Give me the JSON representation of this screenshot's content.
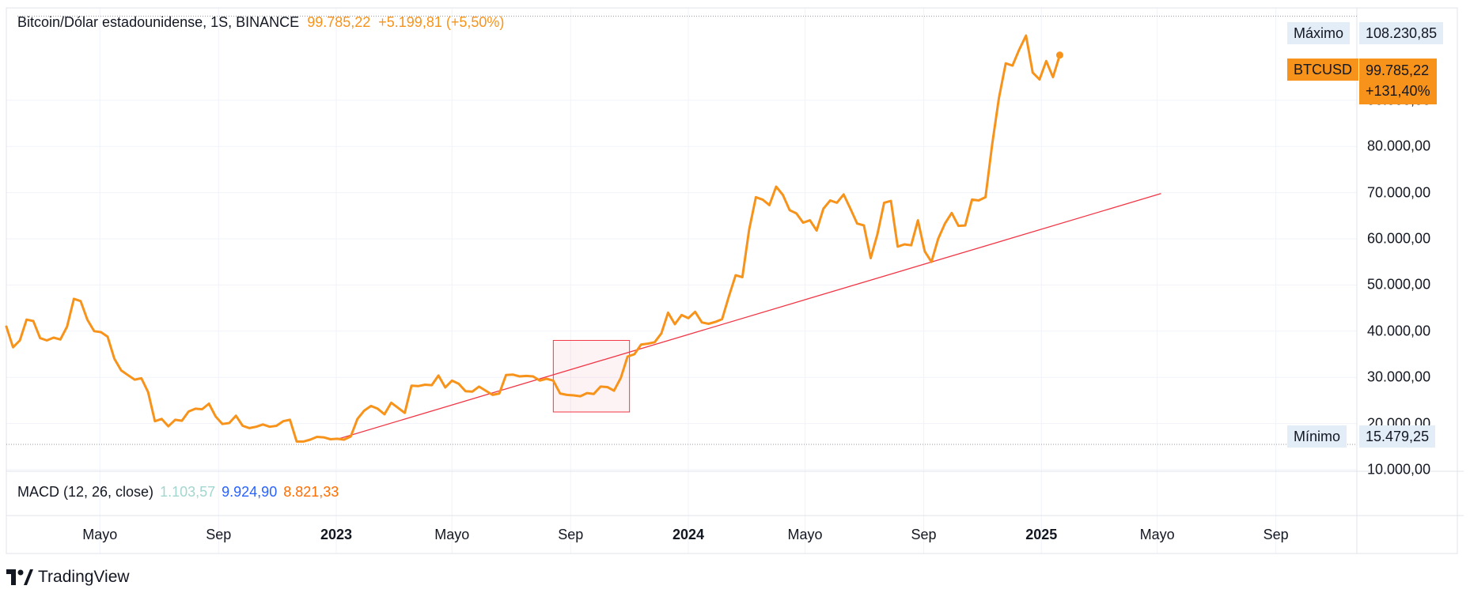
{
  "header": {
    "symbol_title": "Bitcoin/Dólar estadounidense, 1S, BINANCE",
    "price": "99.785,22",
    "change": "+5.199,81 (+5,50%)"
  },
  "macd": {
    "label": "MACD (12, 26, close)",
    "value1": "1.103,57",
    "value2": "9.924,90",
    "value3": "8.821,33"
  },
  "tags": {
    "max_label": "Máximo",
    "max_value": "108.230,85",
    "min_label": "Mínimo",
    "min_value": "15.479,25",
    "symbol": "BTCUSD",
    "last_price": "99.785,22",
    "last_change": "+131,40%"
  },
  "brand": {
    "name": "TradingView"
  },
  "colors": {
    "price_line": "#f7931a",
    "trend_line": "#f23645",
    "grid": "#f0f3fa",
    "macd_v1": "#a3d6cf",
    "macd_v2": "#2962ff",
    "macd_v3": "#ff6d00"
  },
  "chart_data": {
    "type": "line",
    "title": "Bitcoin/Dólar estadounidense, 1S, BINANCE",
    "ylim": [
      10000,
      110000
    ],
    "y_ticks": [
      10000,
      20000,
      30000,
      40000,
      50000,
      60000,
      70000,
      80000,
      90000
    ],
    "y_tick_labels": [
      "10.000,00",
      "20.000,00",
      "30.000,00",
      "40.000,00",
      "50.000,00",
      "60.000,00",
      "70.000,00",
      "80.000,00",
      "90.000,00"
    ],
    "xlim": [
      "2022-01-24",
      "2025-11-24"
    ],
    "x_ticks": [
      {
        "date": "2022-05-01",
        "label": "Mayo",
        "bold": false
      },
      {
        "date": "2022-09-01",
        "label": "Sep",
        "bold": false
      },
      {
        "date": "2023-01-01",
        "label": "2023",
        "bold": true
      },
      {
        "date": "2023-05-01",
        "label": "Mayo",
        "bold": false
      },
      {
        "date": "2023-09-01",
        "label": "Sep",
        "bold": false
      },
      {
        "date": "2024-01-01",
        "label": "2024",
        "bold": true
      },
      {
        "date": "2024-05-01",
        "label": "Mayo",
        "bold": false
      },
      {
        "date": "2024-09-01",
        "label": "Sep",
        "bold": false
      },
      {
        "date": "2025-01-01",
        "label": "2025",
        "bold": true
      },
      {
        "date": "2025-05-01",
        "label": "Mayo",
        "bold": false
      },
      {
        "date": "2025-09-01",
        "label": "Sep",
        "bold": false
      }
    ],
    "grid": true,
    "series": [
      {
        "color": "#f7931a",
        "points": [
          [
            "2022-01-24",
            41000
          ],
          [
            "2022-01-31",
            36500
          ],
          [
            "2022-02-07",
            38000
          ],
          [
            "2022-02-14",
            42500
          ],
          [
            "2022-02-21",
            42200
          ],
          [
            "2022-02-28",
            38500
          ],
          [
            "2022-03-07",
            38000
          ],
          [
            "2022-03-14",
            38600
          ],
          [
            "2022-03-21",
            38200
          ],
          [
            "2022-03-28",
            41000
          ],
          [
            "2022-04-04",
            47000
          ],
          [
            "2022-04-11",
            46500
          ],
          [
            "2022-04-18",
            42500
          ],
          [
            "2022-04-25",
            40000
          ],
          [
            "2022-05-02",
            39800
          ],
          [
            "2022-05-09",
            38800
          ],
          [
            "2022-05-16",
            34000
          ],
          [
            "2022-05-23",
            31500
          ],
          [
            "2022-05-30",
            30500
          ],
          [
            "2022-06-06",
            29500
          ],
          [
            "2022-06-13",
            29800
          ],
          [
            "2022-06-20",
            26800
          ],
          [
            "2022-06-27",
            20500
          ],
          [
            "2022-07-04",
            21000
          ],
          [
            "2022-07-11",
            19400
          ],
          [
            "2022-07-18",
            20800
          ],
          [
            "2022-07-25",
            20600
          ],
          [
            "2022-08-01",
            22600
          ],
          [
            "2022-08-08",
            23200
          ],
          [
            "2022-08-15",
            23100
          ],
          [
            "2022-08-22",
            24300
          ],
          [
            "2022-08-29",
            21500
          ],
          [
            "2022-09-05",
            19900
          ],
          [
            "2022-09-12",
            20100
          ],
          [
            "2022-09-19",
            21700
          ],
          [
            "2022-09-26",
            19500
          ],
          [
            "2022-10-03",
            19000
          ],
          [
            "2022-10-10",
            19300
          ],
          [
            "2022-10-17",
            19800
          ],
          [
            "2022-10-24",
            19300
          ],
          [
            "2022-10-31",
            19500
          ],
          [
            "2022-11-07",
            20500
          ],
          [
            "2022-11-14",
            20800
          ],
          [
            "2022-11-21",
            16100
          ],
          [
            "2022-11-28",
            16100
          ],
          [
            "2022-12-05",
            16500
          ],
          [
            "2022-12-12",
            17100
          ],
          [
            "2022-12-19",
            17000
          ],
          [
            "2022-12-26",
            16600
          ],
          [
            "2023-01-02",
            16700
          ],
          [
            "2023-01-09",
            16500
          ],
          [
            "2023-01-16",
            17200
          ],
          [
            "2023-01-23",
            21000
          ],
          [
            "2023-01-30",
            22800
          ],
          [
            "2023-02-06",
            23800
          ],
          [
            "2023-02-13",
            23200
          ],
          [
            "2023-02-20",
            22000
          ],
          [
            "2023-02-27",
            24500
          ],
          [
            "2023-03-06",
            23400
          ],
          [
            "2023-03-13",
            22300
          ],
          [
            "2023-03-20",
            28200
          ],
          [
            "2023-03-27",
            28100
          ],
          [
            "2023-04-03",
            28400
          ],
          [
            "2023-04-10",
            28300
          ],
          [
            "2023-04-17",
            30400
          ],
          [
            "2023-04-24",
            27800
          ],
          [
            "2023-05-01",
            29300
          ],
          [
            "2023-05-08",
            28600
          ],
          [
            "2023-05-15",
            27000
          ],
          [
            "2023-05-22",
            26900
          ],
          [
            "2023-05-29",
            28000
          ],
          [
            "2023-06-05",
            27100
          ],
          [
            "2023-06-12",
            26200
          ],
          [
            "2023-06-19",
            26500
          ],
          [
            "2023-06-26",
            30500
          ],
          [
            "2023-07-03",
            30600
          ],
          [
            "2023-07-10",
            30200
          ],
          [
            "2023-07-17",
            30300
          ],
          [
            "2023-07-24",
            30200
          ],
          [
            "2023-07-31",
            29300
          ],
          [
            "2023-08-07",
            29700
          ],
          [
            "2023-08-14",
            29300
          ],
          [
            "2023-08-21",
            26500
          ],
          [
            "2023-08-28",
            26200
          ],
          [
            "2023-09-04",
            26100
          ],
          [
            "2023-09-11",
            25900
          ],
          [
            "2023-09-18",
            26600
          ],
          [
            "2023-09-25",
            26400
          ],
          [
            "2023-10-02",
            28000
          ],
          [
            "2023-10-09",
            27900
          ],
          [
            "2023-10-16",
            27100
          ],
          [
            "2023-10-23",
            29900
          ],
          [
            "2023-10-30",
            34500
          ],
          [
            "2023-11-06",
            35000
          ],
          [
            "2023-11-13",
            37100
          ],
          [
            "2023-11-20",
            37300
          ],
          [
            "2023-11-27",
            37600
          ],
          [
            "2023-12-04",
            39500
          ],
          [
            "2023-12-11",
            44000
          ],
          [
            "2023-12-18",
            41500
          ],
          [
            "2023-12-25",
            43500
          ],
          [
            "2024-01-01",
            42800
          ],
          [
            "2024-01-08",
            44200
          ],
          [
            "2024-01-15",
            41900
          ],
          [
            "2024-01-22",
            41600
          ],
          [
            "2024-01-29",
            42000
          ],
          [
            "2024-02-05",
            42600
          ],
          [
            "2024-02-12",
            47500
          ],
          [
            "2024-02-19",
            52100
          ],
          [
            "2024-02-26",
            51700
          ],
          [
            "2024-03-04",
            62000
          ],
          [
            "2024-03-11",
            69000
          ],
          [
            "2024-03-18",
            68500
          ],
          [
            "2024-03-25",
            67300
          ],
          [
            "2024-04-01",
            71300
          ],
          [
            "2024-04-08",
            69500
          ],
          [
            "2024-04-15",
            66200
          ],
          [
            "2024-04-22",
            65500
          ],
          [
            "2024-04-29",
            63500
          ],
          [
            "2024-05-06",
            64000
          ],
          [
            "2024-05-13",
            61800
          ],
          [
            "2024-05-20",
            66500
          ],
          [
            "2024-05-27",
            68300
          ],
          [
            "2024-06-03",
            67800
          ],
          [
            "2024-06-10",
            69600
          ],
          [
            "2024-06-17",
            66500
          ],
          [
            "2024-06-24",
            63300
          ],
          [
            "2024-07-01",
            62900
          ],
          [
            "2024-07-08",
            55800
          ],
          [
            "2024-07-15",
            61000
          ],
          [
            "2024-07-22",
            67800
          ],
          [
            "2024-07-29",
            68200
          ],
          [
            "2024-08-05",
            58300
          ],
          [
            "2024-08-12",
            58800
          ],
          [
            "2024-08-19",
            58600
          ],
          [
            "2024-08-26",
            64000
          ],
          [
            "2024-09-02",
            57300
          ],
          [
            "2024-09-09",
            55000
          ],
          [
            "2024-09-16",
            60000
          ],
          [
            "2024-09-23",
            63300
          ],
          [
            "2024-09-30",
            65600
          ],
          [
            "2024-10-07",
            62800
          ],
          [
            "2024-10-14",
            62900
          ],
          [
            "2024-10-21",
            68500
          ],
          [
            "2024-10-28",
            68300
          ],
          [
            "2024-11-04",
            69000
          ],
          [
            "2024-11-11",
            80500
          ],
          [
            "2024-11-18",
            90500
          ],
          [
            "2024-11-25",
            98000
          ],
          [
            "2024-12-02",
            97500
          ],
          [
            "2024-12-09",
            101000
          ],
          [
            "2024-12-16",
            104000
          ],
          [
            "2024-12-23",
            96000
          ],
          [
            "2024-12-30",
            94500
          ],
          [
            "2025-01-06",
            98500
          ],
          [
            "2025-01-13",
            95000
          ],
          [
            "2025-01-20",
            99785
          ]
        ]
      }
    ],
    "trend_line": {
      "points": [
        [
          "2023-01-02",
          16600
        ],
        [
          "2025-05-05",
          69800
        ]
      ],
      "color": "#f23645"
    },
    "highlight_box": {
      "x_range": [
        "2023-08-14",
        "2023-11-01"
      ],
      "y_range": [
        22500,
        38000
      ],
      "color": "#f23645"
    },
    "max_line": 108230.85,
    "min_line": 15479.25
  }
}
